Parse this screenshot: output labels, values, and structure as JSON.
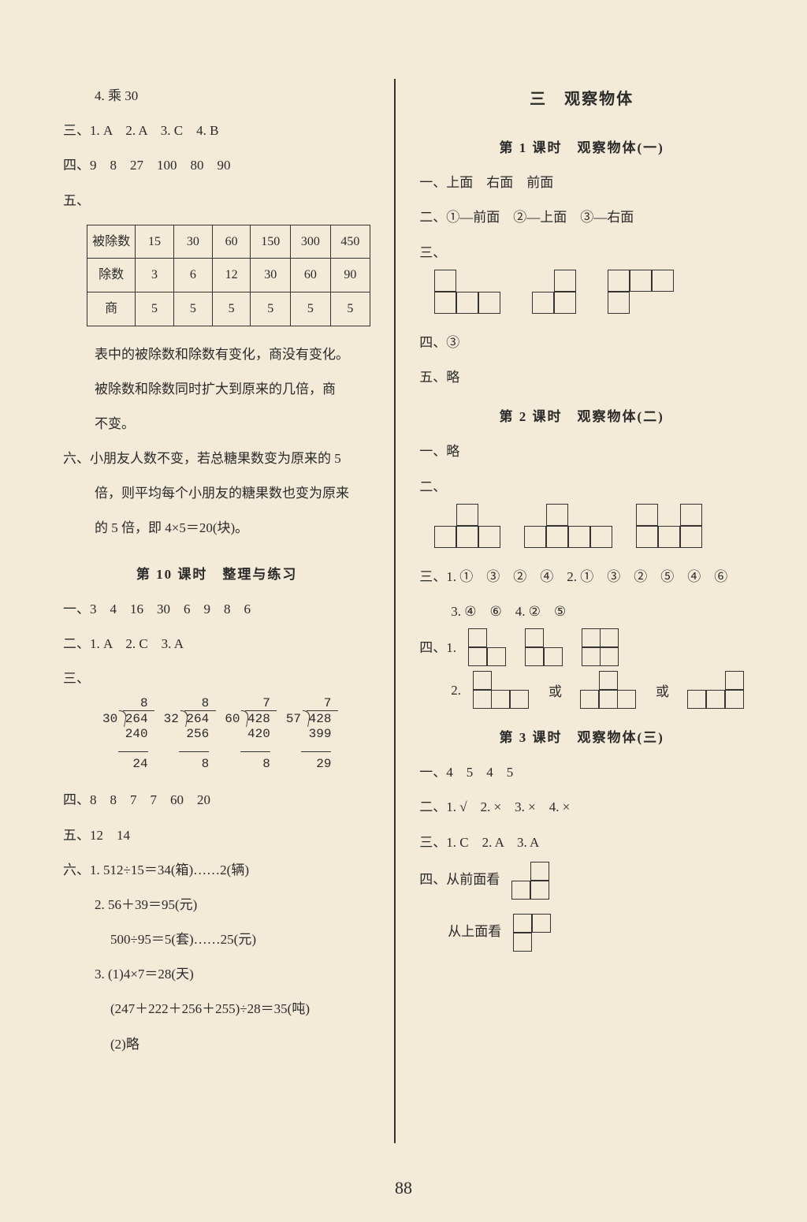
{
  "page_number": "88",
  "colors": {
    "bg": "#f3ead8",
    "text": "#2a2a2a",
    "border": "#333333"
  },
  "left": {
    "l1": "4. 乘 30",
    "l2": "三、1. A　2. A　3. C　4. B",
    "l3": "四、9　8　27　100　80　90",
    "l4": "五、",
    "table": {
      "rows": [
        [
          "被除数",
          "15",
          "30",
          "60",
          "150",
          "300",
          "450"
        ],
        [
          "除数",
          "3",
          "6",
          "12",
          "30",
          "60",
          "90"
        ],
        [
          "商",
          "5",
          "5",
          "5",
          "5",
          "5",
          "5"
        ]
      ]
    },
    "l5": "表中的被除数和除数有变化，商没有变化。",
    "l6": "被除数和除数同时扩大到原来的几倍，商",
    "l7": "不变。",
    "l8": "六、小朋友人数不变，若总糖果数变为原来的 5",
    "l9": "倍，则平均每个小朋友的糖果数也变为原来",
    "l10": "的 5 倍，即 4×5＝20(块)。",
    "h1": "第 10 课时　整理与练习",
    "l11": "一、3　4　16　30　6　9　8　6",
    "l12": "二、1. A　2. C　3. A",
    "l13": "三、",
    "divisions": [
      {
        "divisor": "30",
        "dividend": "264",
        "quotient": "8",
        "sub": "240",
        "rem": "24",
        "qpad": 4,
        "subpad": 2,
        "rpad": 3
      },
      {
        "divisor": "32",
        "dividend": "264",
        "quotient": "8",
        "sub": "256",
        "rem": "8",
        "qpad": 4,
        "subpad": 2,
        "rpad": 4
      },
      {
        "divisor": "60",
        "dividend": "428",
        "quotient": "7",
        "sub": "420",
        "rem": "8",
        "qpad": 4,
        "subpad": 2,
        "rpad": 4
      },
      {
        "divisor": "57",
        "dividend": "428",
        "quotient": "7",
        "sub": "399",
        "rem": "29",
        "qpad": 4,
        "subpad": 2,
        "rpad": 3
      }
    ],
    "l14": "四、8　8　7　7　60　20",
    "l15": "五、12　14",
    "l16": "六、1. 512÷15＝34(箱)……2(辆)",
    "l17": "2. 56＋39＝95(元)",
    "l18": "500÷95＝5(套)……25(元)",
    "l19": "3. (1)4×7＝28(天)",
    "l20": "(247＋222＋256＋255)÷28＝35(吨)",
    "l21": "(2)略"
  },
  "right": {
    "h_main": "三　观察物体",
    "h1": "第 1 课时　观察物体(一)",
    "l1": "一、上面　右面　前面",
    "l2": "二、①—前面　②—上面　③—右面",
    "l3": "三、",
    "shapes_3_1": [
      {
        "cols": 3,
        "rows": 2,
        "cells": [
          [
            1,
            0,
            0
          ],
          [
            1,
            1,
            1
          ]
        ]
      },
      {
        "cols": 2,
        "rows": 2,
        "cells": [
          [
            0,
            1
          ],
          [
            1,
            1
          ]
        ]
      },
      {
        "cols": 3,
        "rows": 2,
        "cells": [
          [
            1,
            1,
            1
          ],
          [
            1,
            0,
            0
          ]
        ]
      }
    ],
    "l4": "四、③",
    "l5": "五、略",
    "h2": "第 2 课时　观察物体(二)",
    "l6": "一、略",
    "l7": "二、",
    "shapes_2_2": [
      {
        "cols": 3,
        "rows": 2,
        "cells": [
          [
            0,
            1,
            0
          ],
          [
            1,
            1,
            1
          ]
        ]
      },
      {
        "cols": 4,
        "rows": 2,
        "cells": [
          [
            0,
            1,
            0,
            0
          ],
          [
            1,
            1,
            1,
            1
          ]
        ]
      },
      {
        "cols": 3,
        "rows": 2,
        "cells": [
          [
            1,
            0,
            1
          ],
          [
            1,
            1,
            1
          ]
        ]
      }
    ],
    "l8": "三、1. ①　③　②　④　2. ①　③　②　⑤　④　⑥",
    "l9": "3. ④　⑥　4. ②　⑤",
    "l10": "四、1.",
    "shapes_4_1": [
      {
        "cols": 2,
        "rows": 2,
        "cells": [
          [
            1,
            0
          ],
          [
            1,
            1
          ]
        ]
      },
      {
        "cols": 2,
        "rows": 2,
        "cells": [
          [
            1,
            0
          ],
          [
            1,
            1
          ]
        ]
      },
      {
        "cols": 2,
        "rows": 2,
        "cells": [
          [
            1,
            1
          ],
          [
            1,
            1
          ]
        ]
      }
    ],
    "l11_pre": "2.",
    "shapes_4_2": [
      {
        "cols": 3,
        "rows": 2,
        "cells": [
          [
            1,
            0,
            0
          ],
          [
            1,
            1,
            1
          ]
        ]
      },
      {
        "cols": 3,
        "rows": 2,
        "cells": [
          [
            0,
            1,
            0
          ],
          [
            1,
            1,
            1
          ]
        ]
      },
      {
        "cols": 3,
        "rows": 2,
        "cells": [
          [
            0,
            0,
            1
          ],
          [
            1,
            1,
            1
          ]
        ]
      }
    ],
    "or": "或",
    "h3": "第 3 课时　观察物体(三)",
    "l12": "一、4　5　4　5",
    "l13": "二、1. √　2. ×　3. ×　4. ×",
    "l14": "三、1. C　2. A　3. A",
    "l15": "四、从前面看",
    "shape_front": {
      "cols": 2,
      "rows": 2,
      "cells": [
        [
          0,
          1
        ],
        [
          1,
          1
        ]
      ]
    },
    "l16": "从上面看",
    "shape_top": {
      "cols": 2,
      "rows": 2,
      "cells": [
        [
          1,
          1
        ],
        [
          1,
          0
        ]
      ]
    }
  }
}
